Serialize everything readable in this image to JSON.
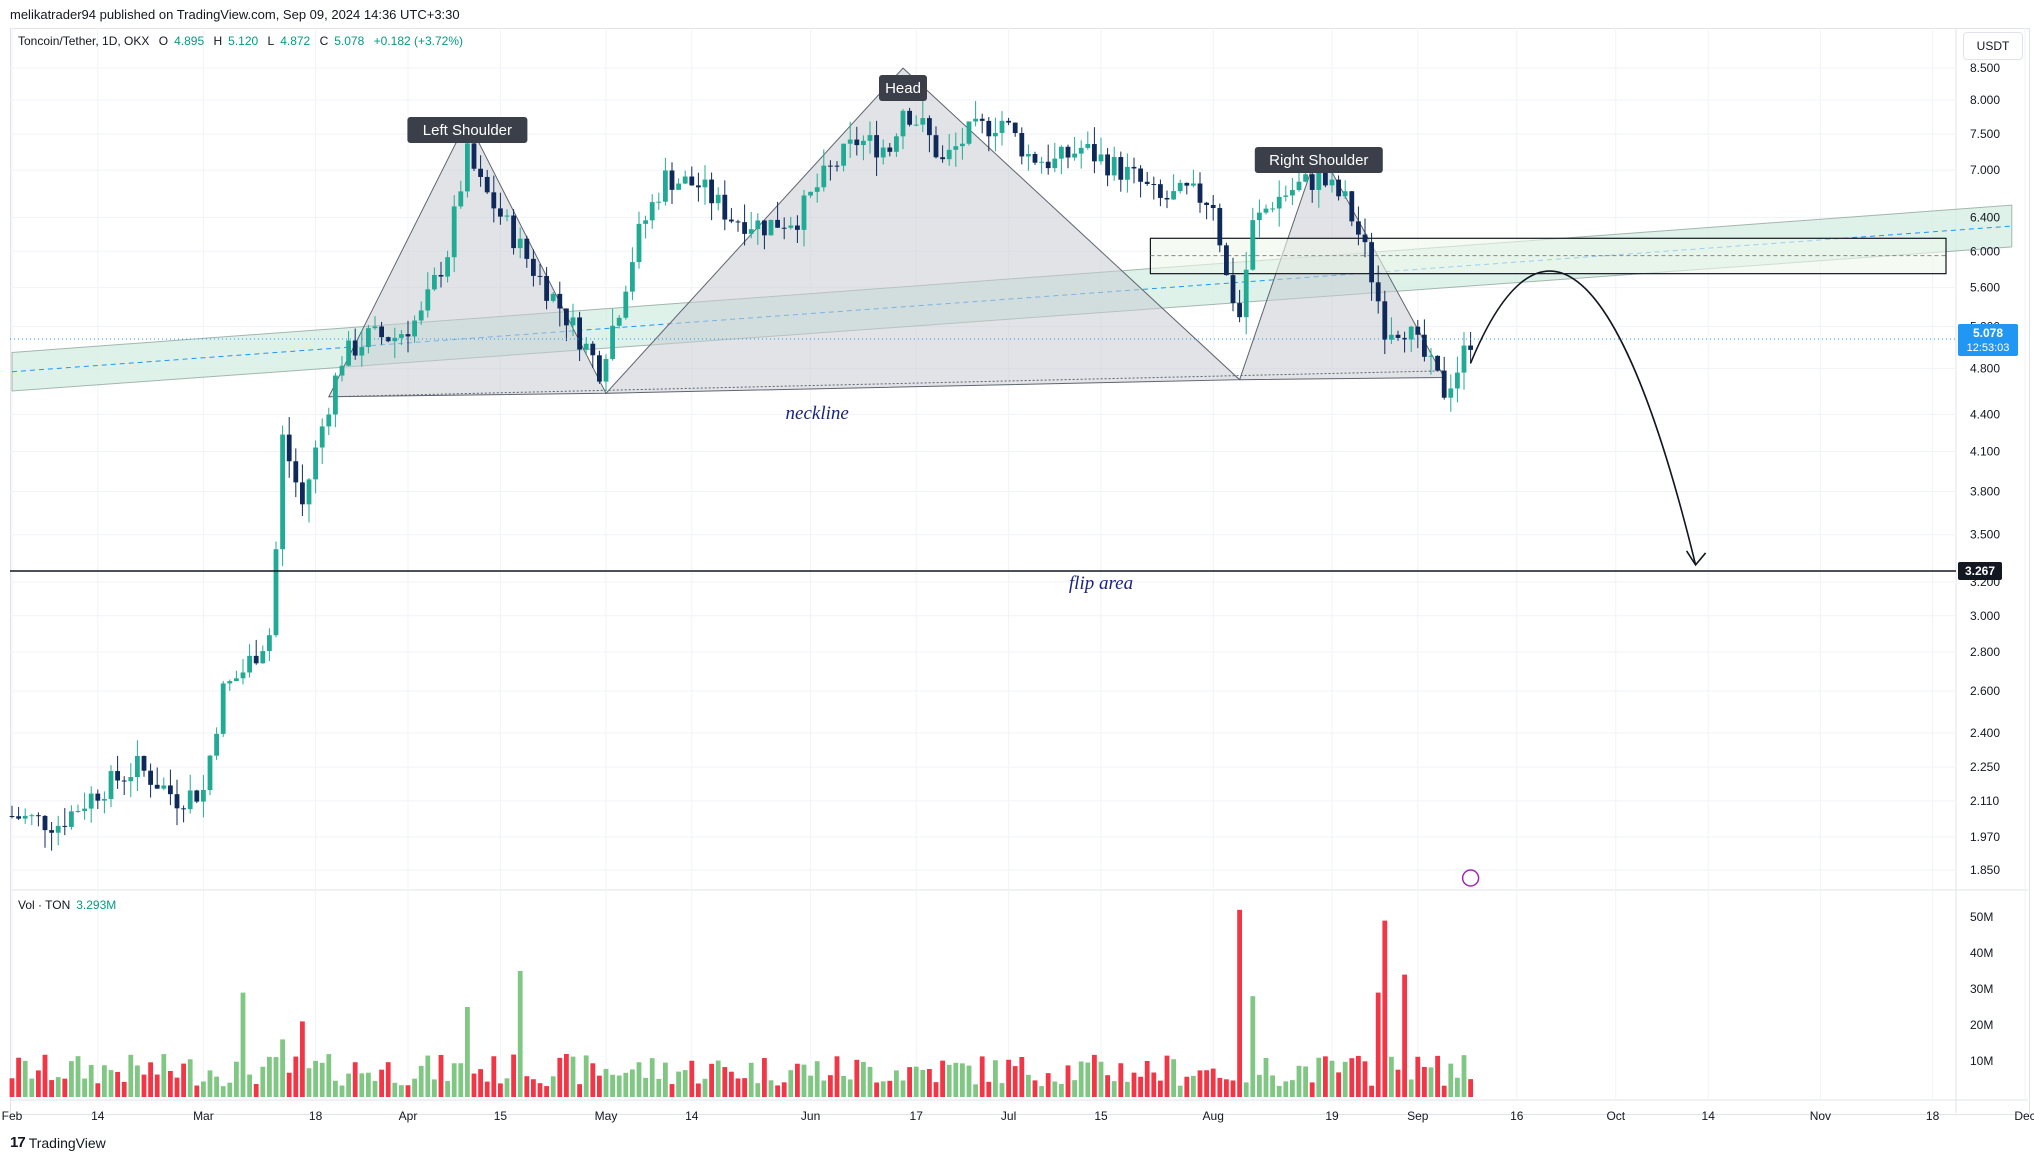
{
  "header": {
    "published": "melikatrader94 published on TradingView.com, Sep 09, 2024 14:36 UTC+3:30"
  },
  "legend": {
    "symbol": "Toncoin/Tether, 1D, OKX",
    "open_label": "O",
    "open": "4.895",
    "high_label": "H",
    "high": "5.120",
    "low_label": "L",
    "low": "4.872",
    "close_label": "C",
    "close": "5.078",
    "change": "+0.182 (+3.72%)"
  },
  "currency": "USDT",
  "volume_legend": {
    "label": "Vol · TON",
    "value": "3.293M"
  },
  "footer": {
    "brand": "TradingView",
    "logo_glyph": "17"
  },
  "colors": {
    "up": "#22ab94",
    "down": "#0f2a5a",
    "vol_up": "#81c784",
    "vol_down": "#f23645",
    "pattern_fill": "#c8ccd1",
    "channel_fill": "#d7efe6",
    "label_bg": "#3b3f4a",
    "current_price": "#2196f3",
    "annotation_text": "#1a237e"
  },
  "chart_data": {
    "type": "candlestick",
    "scale": "log",
    "title": "Toncoin/Tether, 1D, OKX",
    "y_ticks": [
      "8.500",
      "8.000",
      "7.500",
      "7.000",
      "6.400",
      "6.000",
      "5.600",
      "5.200",
      "4.800",
      "4.400",
      "4.100",
      "3.800",
      "3.500",
      "3.200",
      "3.000",
      "2.800",
      "2.600",
      "2.400",
      "2.250",
      "2.110",
      "1.970",
      "1.850"
    ],
    "x_ticks": [
      "Feb",
      "14",
      "Mar",
      "18",
      "Apr",
      "15",
      "May",
      "14",
      "Jun",
      "17",
      "Jul",
      "15",
      "Aug",
      "19",
      "Sep",
      "16",
      "Oct",
      "14",
      "Nov",
      "18",
      "Dec"
    ],
    "volume_ticks": [
      "50M",
      "40M",
      "30M",
      "20M",
      "10M"
    ],
    "current_price": {
      "value": "5.078",
      "countdown": "12:53:03"
    },
    "target_price": "3.267",
    "annotations": {
      "left_shoulder": "Left Shoulder",
      "head": "Head",
      "right_shoulder": "Right Shoulder",
      "neckline": "neckline",
      "flip_area": "flip area"
    },
    "price_path": [
      [
        "Feb 1",
        2.05
      ],
      [
        "Feb 8",
        2.02
      ],
      [
        "Feb 14",
        2.15
      ],
      [
        "Feb 20",
        2.25
      ],
      [
        "Feb 26",
        2.12
      ],
      [
        "Mar 1",
        2.15
      ],
      [
        "Mar 4",
        2.6
      ],
      [
        "Mar 7",
        2.7
      ],
      [
        "Mar 11",
        2.9
      ],
      [
        "Mar 12",
        3.4
      ],
      [
        "Mar 13",
        4.2
      ],
      [
        "Mar 16",
        3.7
      ],
      [
        "Mar 20",
        4.5
      ],
      [
        "Mar 22",
        4.9
      ],
      [
        "Mar 26",
        5.1
      ],
      [
        "Mar 30",
        5.1
      ],
      [
        "Apr 3",
        5.3
      ],
      [
        "Apr 7",
        6.0
      ],
      [
        "Apr 10",
        7.2
      ],
      [
        "Apr 12",
        6.8
      ],
      [
        "Apr 16",
        6.3
      ],
      [
        "Apr 20",
        5.8
      ],
      [
        "Apr 25",
        5.3
      ],
      [
        "Apr 30",
        4.8
      ],
      [
        "May 3",
        5.4
      ],
      [
        "May 6",
        6.2
      ],
      [
        "May 10",
        6.9
      ],
      [
        "May 15",
        6.8
      ],
      [
        "May 20",
        6.4
      ],
      [
        "May 25",
        6.3
      ],
      [
        "May 30",
        6.4
      ],
      [
        "Jun 3",
        6.9
      ],
      [
        "Jun 8",
        7.4
      ],
      [
        "Jun 13",
        7.3
      ],
      [
        "Jun 15",
        7.9
      ],
      [
        "Jun 18",
        7.6
      ],
      [
        "Jun 21",
        7.1
      ],
      [
        "Jun 25",
        7.5
      ],
      [
        "Jun 30",
        7.7
      ],
      [
        "Jul 4",
        7.2
      ],
      [
        "Jul 8",
        7.1
      ],
      [
        "Jul 12",
        7.3
      ],
      [
        "Jul 16",
        7.1
      ],
      [
        "Jul 20",
        6.9
      ],
      [
        "Jul 24",
        6.6
      ],
      [
        "Jul 28",
        6.7
      ],
      [
        "Aug 1",
        6.6
      ],
      [
        "Aug 3",
        5.7
      ],
      [
        "Aug 5",
        5.3
      ],
      [
        "Aug 7",
        6.3
      ],
      [
        "Aug 10",
        6.6
      ],
      [
        "Aug 14",
        6.8
      ],
      [
        "Aug 17",
        6.9
      ],
      [
        "Aug 21",
        6.6
      ],
      [
        "Aug 24",
        6.0
      ],
      [
        "Aug 27",
        5.2
      ],
      [
        "Aug 30",
        5.2
      ],
      [
        "Sep 2",
        4.9
      ],
      [
        "Sep 5",
        4.6
      ],
      [
        "Sep 7",
        4.8
      ],
      [
        "Sep 9",
        5.078
      ]
    ],
    "volume_peaks": [
      [
        "Mar 7",
        29
      ],
      [
        "Mar 13",
        16
      ],
      [
        "Mar 16",
        21
      ],
      [
        "Apr 10",
        25
      ],
      [
        "Apr 18",
        35
      ],
      [
        "Aug 5",
        52
      ],
      [
        "Aug 7",
        28
      ],
      [
        "Aug 26",
        29
      ],
      [
        "Aug 27",
        49
      ],
      [
        "Aug 30",
        34
      ]
    ],
    "levels": {
      "neckline_start": 4.55,
      "neckline_end": 4.78,
      "supply_zone": [
        5.75,
        6.15
      ],
      "flip_area": 3.267
    }
  }
}
